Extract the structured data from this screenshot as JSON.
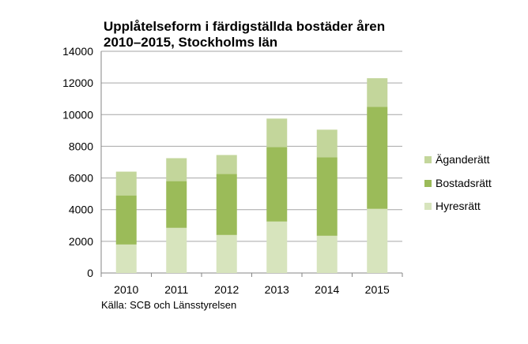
{
  "chart_data": {
    "type": "bar",
    "stacked": true,
    "title_line1": "Upplåtelseform i färdigställda bostäder åren",
    "title_line2": "2010–2015, Stockholms län",
    "source": "Källa: SCB och Länsstyrelsen",
    "categories": [
      "2010",
      "2011",
      "2012",
      "2013",
      "2014",
      "2015"
    ],
    "ylim": [
      0,
      14000
    ],
    "yticks": [
      0,
      2000,
      4000,
      6000,
      8000,
      10000,
      12000,
      14000
    ],
    "grid": true,
    "legend_position": "right",
    "series": [
      {
        "name": "Hyresrätt",
        "color": "#d7e4bd",
        "values": [
          1800,
          2850,
          2400,
          3250,
          2350,
          4050
        ]
      },
      {
        "name": "Bostadsrätt",
        "color": "#9bbb59",
        "values": [
          3100,
          2950,
          3850,
          4700,
          4950,
          6450
        ]
      },
      {
        "name": "Äganderätt",
        "color": "#c3d69b",
        "values": [
          1500,
          1450,
          1200,
          1800,
          1750,
          1800
        ]
      }
    ],
    "legend_order": [
      "Äganderätt",
      "Bostadsrätt",
      "Hyresrätt"
    ]
  }
}
